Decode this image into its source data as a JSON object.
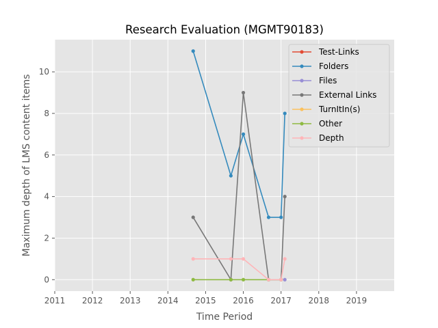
{
  "chart_data": {
    "type": "line",
    "title": "Research Evaluation (MGMT90183)",
    "xlabel": "Time Period",
    "ylabel": "Maximum depth of LMS content items",
    "xlim": [
      2011,
      2020
    ],
    "ylim": [
      -0.55,
      11.55
    ],
    "xticks": [
      "2011",
      "2012",
      "2013",
      "2014",
      "2015",
      "2016",
      "2017",
      "2018",
      "2019"
    ],
    "yticks": [
      "0",
      "2",
      "4",
      "6",
      "8",
      "10"
    ],
    "grid": true,
    "legend_position": "top-right",
    "series": [
      {
        "name": "Test-Links",
        "color": "#E24A33",
        "x": [],
        "y": []
      },
      {
        "name": "Folders",
        "color": "#348ABD",
        "x": [
          2014.67,
          2015.67,
          2016.0,
          2016.67,
          2017.0,
          2017.1
        ],
        "y": [
          11,
          5,
          7,
          3,
          3,
          8
        ]
      },
      {
        "name": "Files",
        "color": "#988ED5",
        "x": [
          2017.1
        ],
        "y": [
          0
        ]
      },
      {
        "name": "External Links",
        "color": "#777777",
        "x": [
          2014.67,
          2015.67,
          2016.0,
          2016.67,
          2017.0,
          2017.1
        ],
        "y": [
          3,
          0,
          9,
          0,
          0,
          4
        ]
      },
      {
        "name": "TurnItIn(s)",
        "color": "#FBC15E",
        "x": [],
        "y": []
      },
      {
        "name": "Other",
        "color": "#8EBA42",
        "x": [
          2014.67,
          2015.67,
          2016.0,
          2016.67,
          2017.0
        ],
        "y": [
          0,
          0,
          0,
          0,
          0
        ]
      },
      {
        "name": "Depth",
        "color": "#FFB5B8",
        "x": [
          2014.67,
          2015.67,
          2016.0,
          2016.67,
          2017.0,
          2017.1
        ],
        "y": [
          1,
          1,
          1,
          0,
          0,
          1
        ]
      }
    ]
  }
}
